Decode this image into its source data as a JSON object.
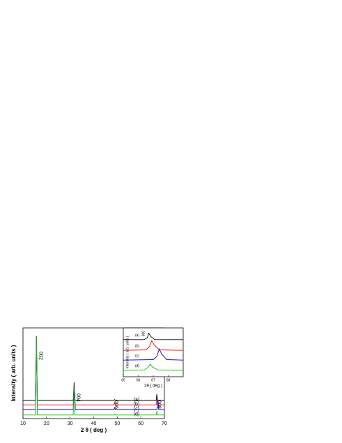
{
  "chart_data": [
    {
      "type": "line",
      "xlabel": "2 θ ( deg )",
      "ylabel": "Intensity ( arb. units )",
      "xlim": [
        10,
        70
      ],
      "xticks": [
        10,
        20,
        30,
        40,
        50,
        60,
        70
      ],
      "ylim": [
        0,
        100
      ],
      "annotations": [
        "002",
        "004",
        "006",
        "008"
      ],
      "series": [
        {
          "name": "(a)",
          "color": "#000000",
          "x": [
            10,
            15.3,
            15.7,
            16.1,
            31.3,
            31.7,
            32.1,
            48.6,
            48.9,
            49.2,
            66.5,
            66.8,
            67.1,
            70
          ],
          "values": [
            20,
            20,
            91,
            20,
            20,
            40,
            20,
            20,
            21,
            20,
            20,
            27,
            20,
            20
          ]
        },
        {
          "name": "(b)",
          "color": "#ff0000",
          "x": [
            10,
            15.3,
            15.7,
            16.1,
            31.3,
            31.7,
            32.1,
            48.6,
            48.9,
            49.2,
            66.5,
            66.9,
            67.2,
            70
          ],
          "values": [
            15,
            15,
            88,
            15,
            15,
            38,
            15,
            15,
            18,
            15,
            15,
            22,
            15,
            15
          ]
        },
        {
          "name": "(c)",
          "color": "#0000ff",
          "x": [
            10,
            15.3,
            15.7,
            16.1,
            31.3,
            31.8,
            32.2,
            48.6,
            48.9,
            49.2,
            66.9,
            67.3,
            67.6,
            70
          ],
          "values": [
            10,
            10,
            85,
            10,
            10,
            36,
            10,
            10,
            12,
            10,
            10,
            20,
            10,
            10
          ]
        },
        {
          "name": "(d)",
          "color": "#00cc00",
          "x": [
            10,
            15.3,
            15.7,
            16.1,
            31.3,
            31.7,
            32.1,
            48.6,
            48.9,
            49.2,
            66.5,
            66.8,
            67.1,
            70
          ],
          "values": [
            4,
            4,
            90,
            4,
            4,
            35,
            4,
            4,
            5,
            4,
            4,
            8,
            4,
            4
          ]
        }
      ]
    },
    {
      "type": "line",
      "xlabel": "2θ ( deg )",
      "ylabel": "Intensity ( arb. units )",
      "xlim": [
        65,
        69
      ],
      "xticks": [
        65,
        66,
        67,
        68
      ],
      "ylim": [
        0,
        100
      ],
      "annotations": [
        "008"
      ],
      "series": [
        {
          "name": "(a)",
          "color": "#000000",
          "x": [
            65,
            66.4,
            66.6,
            66.7,
            66.85,
            67.1,
            69
          ],
          "values": [
            76,
            76,
            80,
            89,
            82,
            76,
            76
          ]
        },
        {
          "name": "(b)",
          "color": "#ff0000",
          "x": [
            65,
            66.5,
            66.75,
            66.9,
            67.05,
            67.4,
            69
          ],
          "values": [
            54,
            55,
            62,
            74,
            66,
            55,
            54
          ]
        },
        {
          "name": "(c)",
          "color": "#0000ff",
          "x": [
            65,
            67.0,
            67.25,
            67.4,
            67.55,
            67.9,
            69
          ],
          "values": [
            34,
            35,
            42,
            57,
            47,
            35,
            34
          ]
        },
        {
          "name": "(d)",
          "color": "#00cc00",
          "x": [
            65,
            66.4,
            66.65,
            66.8,
            66.95,
            67.3,
            69
          ],
          "values": [
            13,
            14,
            19,
            26,
            20,
            14,
            13
          ]
        }
      ]
    }
  ]
}
